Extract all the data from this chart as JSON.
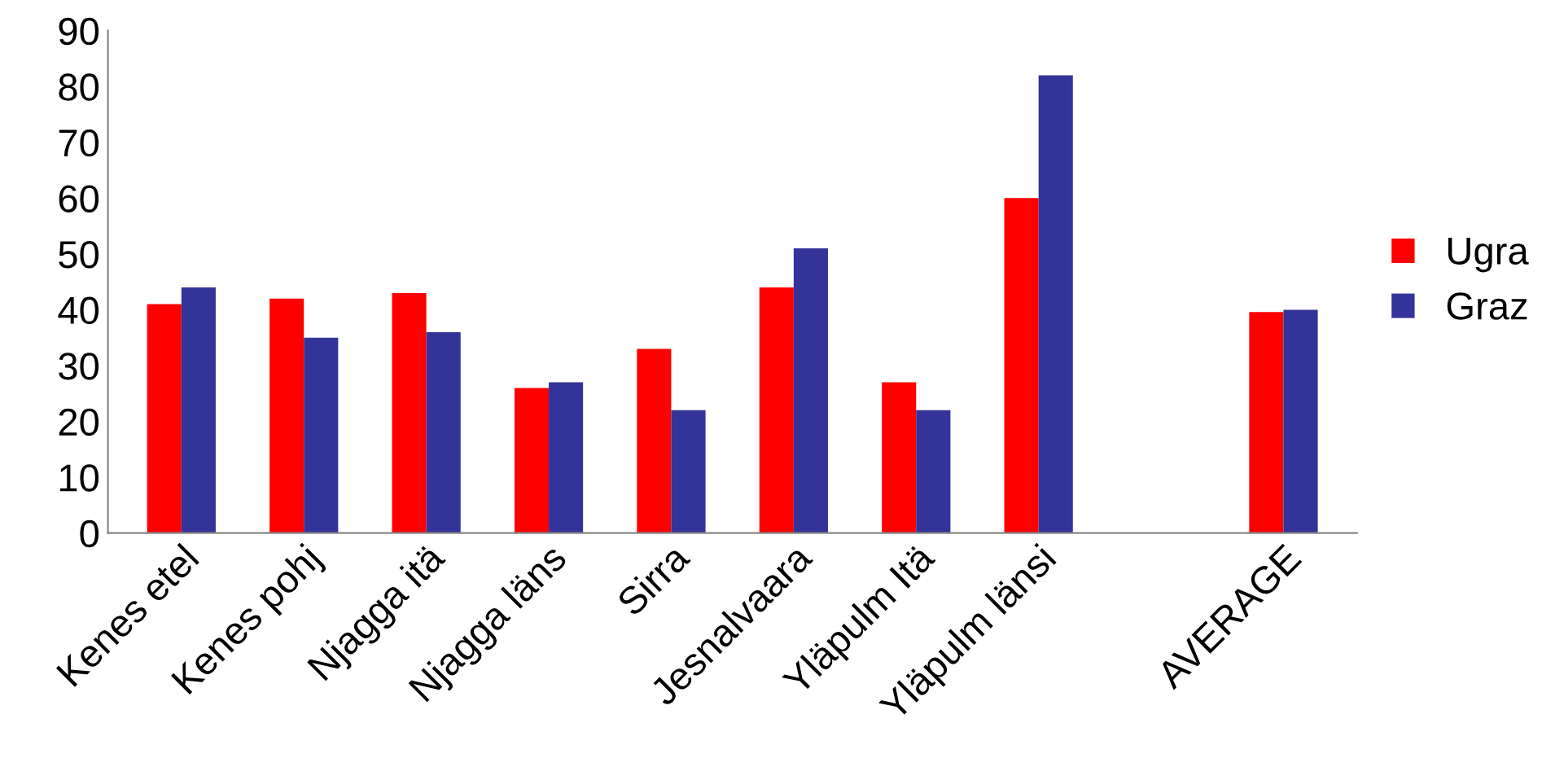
{
  "chart_data": {
    "type": "bar",
    "categories": [
      "Kenes etel",
      "Kenes pohj",
      "Njagga itä",
      "Njagga läns",
      "Sirra",
      "Jesnalvaara",
      "Yläpulm Itä",
      "Yläpulm länsi",
      null,
      "AVERAGE"
    ],
    "series": [
      {
        "name": "Ugra",
        "color": "#ff0000",
        "values": [
          41,
          42,
          43,
          26,
          33,
          44,
          27,
          60,
          null,
          39.6
        ]
      },
      {
        "name": "Graz",
        "color": "#333399",
        "values": [
          44,
          35,
          36,
          27,
          22,
          51,
          22,
          82,
          null,
          40
        ]
      }
    ],
    "ylim": [
      0,
      90
    ],
    "yticks": [
      0,
      10,
      20,
      30,
      40,
      50,
      60,
      70,
      80,
      90
    ],
    "grid": false,
    "legend": "right"
  }
}
